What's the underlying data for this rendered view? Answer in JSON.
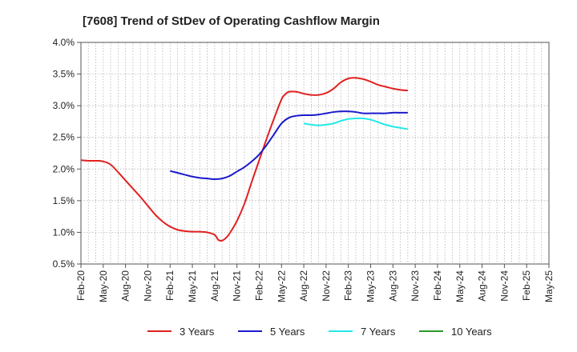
{
  "chart_data": {
    "type": "line",
    "title": "[7608]  Trend of StDev of Operating Cashflow Margin",
    "xlabel": "",
    "ylabel": "",
    "x_ticks": [
      "Feb-20",
      "May-20",
      "Aug-20",
      "Nov-20",
      "Feb-21",
      "May-21",
      "Aug-21",
      "Nov-21",
      "Feb-22",
      "May-22",
      "Aug-22",
      "Nov-22",
      "Feb-23",
      "May-23",
      "Aug-23",
      "Nov-23",
      "Feb-24",
      "May-24",
      "Aug-24",
      "Nov-24",
      "Feb-25",
      "May-25"
    ],
    "y_ticks": [
      "0.5%",
      "1.0%",
      "1.5%",
      "2.0%",
      "2.5%",
      "3.0%",
      "3.5%",
      "4.0%"
    ],
    "ylim": [
      0.5,
      4.0
    ],
    "grid": true,
    "legend_position": "bottom",
    "series": [
      {
        "name": "3 Years",
        "color": "#e02020",
        "points": [
          [
            0,
            2.14
          ],
          [
            1,
            2.13
          ],
          [
            2,
            2.13
          ],
          [
            3,
            2.12
          ],
          [
            4,
            2.07
          ],
          [
            5,
            1.95
          ],
          [
            6,
            1.82
          ],
          [
            7,
            1.69
          ],
          [
            8,
            1.56
          ],
          [
            9,
            1.42
          ],
          [
            10,
            1.28
          ],
          [
            11,
            1.17
          ],
          [
            12,
            1.09
          ],
          [
            13,
            1.04
          ],
          [
            14,
            1.02
          ],
          [
            15,
            1.01
          ],
          [
            16,
            1.01
          ],
          [
            17,
            1.0
          ],
          [
            18,
            0.96
          ],
          [
            18.5,
            0.88
          ],
          [
            19,
            0.87
          ],
          [
            19.5,
            0.91
          ],
          [
            20,
            0.98
          ],
          [
            21,
            1.18
          ],
          [
            22,
            1.45
          ],
          [
            23,
            1.8
          ],
          [
            24,
            2.14
          ],
          [
            25,
            2.48
          ],
          [
            26,
            2.8
          ],
          [
            27,
            3.1
          ],
          [
            27.5,
            3.18
          ],
          [
            28,
            3.22
          ],
          [
            29,
            3.22
          ],
          [
            30,
            3.19
          ],
          [
            31,
            3.17
          ],
          [
            32,
            3.17
          ],
          [
            33,
            3.2
          ],
          [
            34,
            3.27
          ],
          [
            35,
            3.37
          ],
          [
            36,
            3.43
          ],
          [
            37,
            3.44
          ],
          [
            38,
            3.42
          ],
          [
            39,
            3.38
          ],
          [
            40,
            3.33
          ],
          [
            41,
            3.3
          ],
          [
            42,
            3.27
          ],
          [
            43,
            3.25
          ],
          [
            44,
            3.24
          ]
        ]
      },
      {
        "name": "5 Years",
        "color": "#1a1acc",
        "points": [
          [
            12,
            1.97
          ],
          [
            13,
            1.94
          ],
          [
            14,
            1.91
          ],
          [
            15,
            1.88
          ],
          [
            16,
            1.86
          ],
          [
            17,
            1.85
          ],
          [
            18,
            1.84
          ],
          [
            19,
            1.85
          ],
          [
            20,
            1.89
          ],
          [
            21,
            1.96
          ],
          [
            22,
            2.03
          ],
          [
            23,
            2.12
          ],
          [
            24,
            2.23
          ],
          [
            25,
            2.38
          ],
          [
            26,
            2.55
          ],
          [
            27,
            2.72
          ],
          [
            28,
            2.81
          ],
          [
            29,
            2.84
          ],
          [
            30,
            2.85
          ],
          [
            31,
            2.85
          ],
          [
            32,
            2.86
          ],
          [
            33,
            2.88
          ],
          [
            34,
            2.9
          ],
          [
            35,
            2.91
          ],
          [
            36,
            2.91
          ],
          [
            37,
            2.9
          ],
          [
            38,
            2.88
          ],
          [
            39,
            2.88
          ],
          [
            40,
            2.88
          ],
          [
            41,
            2.88
          ],
          [
            42,
            2.89
          ],
          [
            43,
            2.89
          ],
          [
            44,
            2.89
          ]
        ]
      },
      {
        "name": "7 Years",
        "color": "#22e8e8",
        "points": [
          [
            30,
            2.72
          ],
          [
            31,
            2.7
          ],
          [
            32,
            2.69
          ],
          [
            33,
            2.7
          ],
          [
            34,
            2.72
          ],
          [
            35,
            2.76
          ],
          [
            36,
            2.79
          ],
          [
            37,
            2.8
          ],
          [
            38,
            2.8
          ],
          [
            39,
            2.78
          ],
          [
            40,
            2.74
          ],
          [
            41,
            2.7
          ],
          [
            42,
            2.67
          ],
          [
            43,
            2.65
          ],
          [
            44,
            2.63
          ]
        ]
      },
      {
        "name": "10 Years",
        "color": "#2a9a2a",
        "points": []
      }
    ]
  }
}
